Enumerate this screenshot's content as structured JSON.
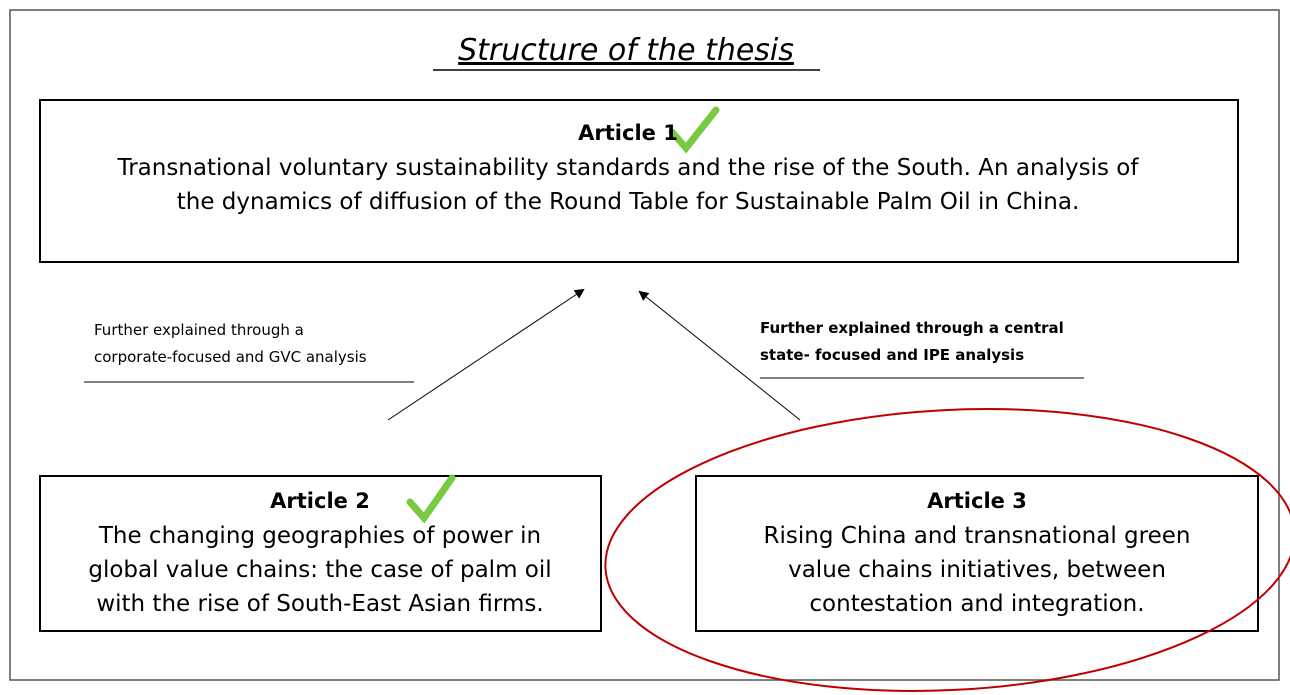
{
  "title": "Structure of the thesis",
  "articles": [
    {
      "heading": "Article 1",
      "lines": [
        "Transnational voluntary sustainability standards and the rise of the South. An analysis of",
        "the dynamics of diffusion of the Round Table for Sustainable Palm Oil in China."
      ]
    },
    {
      "heading": "Article 2",
      "lines": [
        "The changing geographies of power in",
        "global value chains: the case of palm oil",
        "with the rise of South-East Asian firms."
      ]
    },
    {
      "heading": "Article 3",
      "lines": [
        "Rising China and transnational green",
        "value chains initiatives, between",
        "contestation and integration."
      ]
    }
  ],
  "links": [
    {
      "lines": [
        "Further explained through a",
        "corporate-focused  and GVC analysis"
      ]
    },
    {
      "lines": [
        "Further explained through a central",
        "state- focused and IPE analysis"
      ]
    }
  ]
}
